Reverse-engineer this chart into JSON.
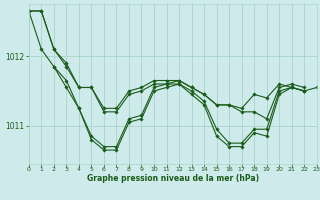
{
  "title": "Graphe pression niveau de la mer (hPa)",
  "bg_color": "#ceeaea",
  "grid_color": "#a8d4cc",
  "line_color": "#1a5c1a",
  "marker_color": "#1a5c1a",
  "tick_color": "#1a5c1a",
  "xlim": [
    0,
    23
  ],
  "ylim": [
    1010.45,
    1012.75
  ],
  "yticks": [
    1011,
    1012
  ],
  "xticks": [
    0,
    1,
    2,
    3,
    4,
    5,
    6,
    7,
    8,
    9,
    10,
    11,
    12,
    13,
    14,
    15,
    16,
    17,
    18,
    19,
    20,
    21,
    22,
    23
  ],
  "series": [
    [
      1012.65,
      1012.65,
      1012.1,
      1011.85,
      1011.55,
      1011.55,
      1011.2,
      1011.2,
      1011.45,
      1011.5,
      1011.6,
      1011.6,
      1011.65,
      1011.55,
      1011.45,
      1011.3,
      1011.3,
      1011.25,
      1011.45,
      1011.4,
      1011.6,
      1011.55,
      1011.5,
      null
    ],
    [
      1012.65,
      1012.65,
      1012.1,
      1011.9,
      1011.55,
      1011.55,
      1011.25,
      1011.25,
      1011.5,
      1011.55,
      1011.65,
      1011.65,
      1011.65,
      1011.55,
      1011.45,
      1011.3,
      1011.3,
      1011.2,
      1011.2,
      1011.1,
      1011.55,
      1011.6,
      1011.55,
      null
    ],
    [
      1012.65,
      1012.1,
      1011.85,
      1011.65,
      1011.25,
      1010.85,
      1010.7,
      1010.7,
      1011.1,
      1011.15,
      1011.55,
      1011.6,
      1011.6,
      1011.5,
      1011.35,
      1010.95,
      1010.75,
      1010.75,
      1010.95,
      1010.95,
      1011.5,
      1011.55,
      1011.5,
      null
    ],
    [
      null,
      null,
      1011.85,
      1011.55,
      1011.25,
      1010.8,
      1010.65,
      1010.65,
      1011.05,
      1011.1,
      1011.5,
      1011.55,
      1011.6,
      1011.45,
      1011.3,
      1010.85,
      1010.7,
      1010.7,
      1010.9,
      1010.85,
      1011.45,
      1011.55,
      1011.5,
      1011.55
    ]
  ]
}
